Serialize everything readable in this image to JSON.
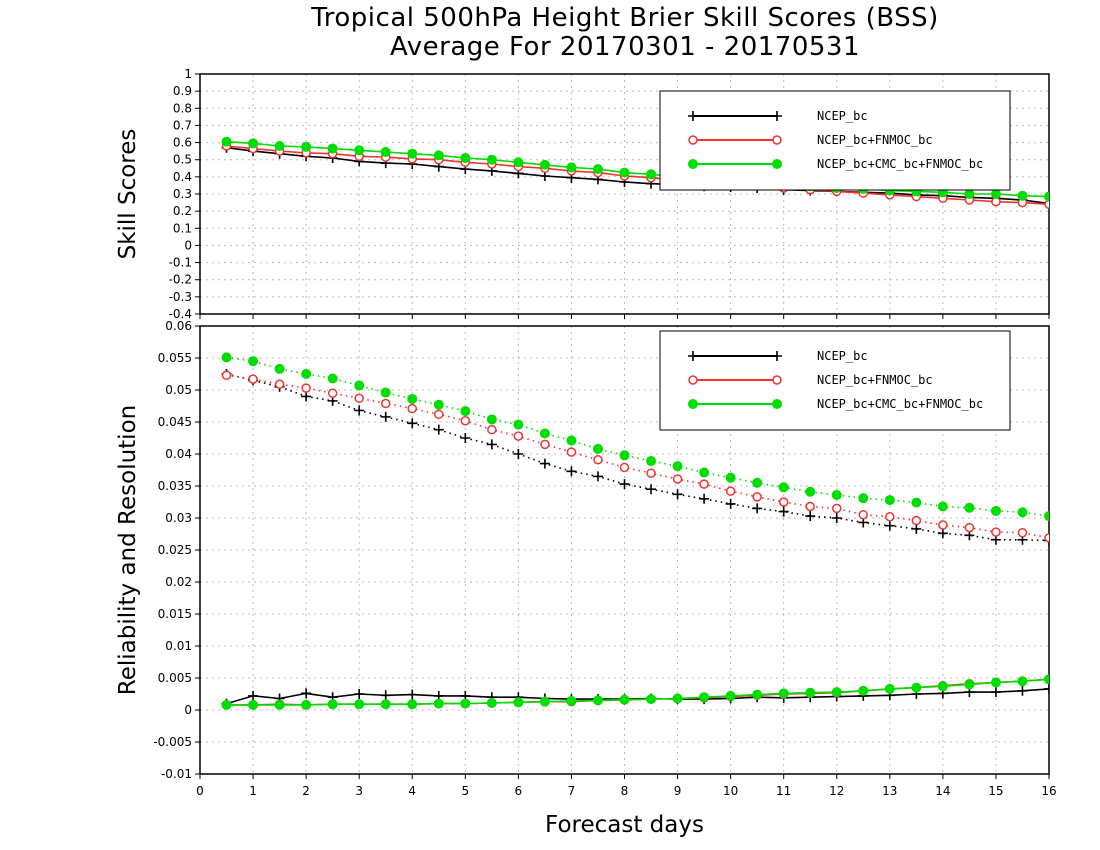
{
  "title_line1": "Tropical 500hPa Height Brier Skill Scores (BSS)",
  "title_line2": "Average For 20170301 - 20170531",
  "colors": {
    "NCEP_bc": "#000000",
    "NCEP_bc+FNMOC_bc": "#ee3333",
    "NCEP_bc+CMC_bc+FNMOC_bc": "#00dd00"
  },
  "chart_data": [
    {
      "type": "line",
      "ylabel": "Skill Scores",
      "xlim": [
        0,
        16
      ],
      "ylim": [
        -0.4,
        1
      ],
      "yticks": [
        -0.4,
        -0.3,
        -0.2,
        -0.1,
        0,
        0.1,
        0.2,
        0.3,
        0.4,
        0.5,
        0.6,
        0.7,
        0.8,
        0.9,
        1
      ],
      "ytick_labels": [
        "-0.4",
        "-0.3",
        "-0.2",
        "-0.1",
        "0",
        "0.1",
        "0.2",
        "0.3",
        "0.4",
        "0.5",
        "0.6",
        "0.7",
        "0.8",
        "0.9",
        "1"
      ],
      "grid": true,
      "legend_position": "top-right",
      "x": [
        0.5,
        1,
        1.5,
        2,
        2.5,
        3,
        3.5,
        4,
        4.5,
        5,
        5.5,
        6,
        6.5,
        7,
        7.5,
        8,
        8.5,
        9,
        9.5,
        10,
        10.5,
        11,
        11.5,
        12,
        12.5,
        13,
        13.5,
        14,
        14.5,
        15,
        15.5,
        16
      ],
      "series": [
        {
          "name": "NCEP_bc",
          "marker": "plus",
          "line": "solid",
          "values": [
            0.57,
            0.55,
            0.535,
            0.52,
            0.51,
            0.49,
            0.48,
            0.475,
            0.46,
            0.445,
            0.435,
            0.42,
            0.405,
            0.395,
            0.385,
            0.37,
            0.36,
            0.355,
            0.345,
            0.34,
            0.335,
            0.325,
            0.32,
            0.315,
            0.31,
            0.305,
            0.295,
            0.29,
            0.28,
            0.275,
            0.265,
            0.245
          ]
        },
        {
          "name": "NCEP_bc+FNMOC_bc",
          "marker": "circle-open",
          "line": "solid",
          "values": [
            0.58,
            0.565,
            0.55,
            0.54,
            0.535,
            0.52,
            0.515,
            0.505,
            0.5,
            0.485,
            0.475,
            0.46,
            0.45,
            0.435,
            0.425,
            0.405,
            0.395,
            0.38,
            0.37,
            0.36,
            0.345,
            0.335,
            0.325,
            0.315,
            0.305,
            0.295,
            0.285,
            0.275,
            0.265,
            0.255,
            0.25,
            0.24
          ]
        },
        {
          "name": "NCEP_bc+CMC_bc+FNMOC_bc",
          "marker": "circle-filled",
          "line": "solid",
          "values": [
            0.605,
            0.595,
            0.58,
            0.575,
            0.565,
            0.555,
            0.545,
            0.535,
            0.525,
            0.51,
            0.5,
            0.485,
            0.47,
            0.455,
            0.445,
            0.425,
            0.415,
            0.4,
            0.39,
            0.375,
            0.365,
            0.355,
            0.345,
            0.335,
            0.33,
            0.32,
            0.315,
            0.31,
            0.3,
            0.3,
            0.29,
            0.285
          ]
        }
      ]
    },
    {
      "type": "line",
      "ylabel": "Reliability and Resolution",
      "xlabel": "Forecast days",
      "xlim": [
        0,
        16
      ],
      "ylim": [
        -0.01,
        0.06
      ],
      "xticks": [
        0,
        1,
        2,
        3,
        4,
        5,
        6,
        7,
        8,
        9,
        10,
        11,
        12,
        13,
        14,
        15,
        16
      ],
      "yticks": [
        -0.01,
        -0.005,
        0,
        0.005,
        0.01,
        0.015,
        0.02,
        0.025,
        0.03,
        0.035,
        0.04,
        0.045,
        0.05,
        0.055,
        0.06
      ],
      "ytick_labels": [
        "-0.01",
        "-0.005",
        "0",
        "0.005",
        "0.01",
        "0.015",
        "0.02",
        "0.025",
        "0.03",
        "0.035",
        "0.04",
        "0.045",
        "0.05",
        "0.055",
        "0.06"
      ],
      "grid": true,
      "legend_position": "top-right",
      "x": [
        0.5,
        1,
        1.5,
        2,
        2.5,
        3,
        3.5,
        4,
        4.5,
        5,
        5.5,
        6,
        6.5,
        7,
        7.5,
        8,
        8.5,
        9,
        9.5,
        10,
        10.5,
        11,
        11.5,
        12,
        12.5,
        13,
        13.5,
        14,
        14.5,
        15,
        15.5,
        16
      ],
      "series": [
        {
          "name": "NCEP_bc",
          "marker": "plus",
          "line": "dotted",
          "role": "resolution",
          "values": [
            0.0525,
            0.0515,
            0.0505,
            0.049,
            0.0483,
            0.0468,
            0.0458,
            0.0448,
            0.0438,
            0.0425,
            0.0415,
            0.04,
            0.0385,
            0.0373,
            0.0365,
            0.0353,
            0.0345,
            0.0337,
            0.033,
            0.0322,
            0.0315,
            0.031,
            0.0303,
            0.03,
            0.0293,
            0.0288,
            0.0283,
            0.0276,
            0.0273,
            0.0266,
            0.0266,
            0.0265
          ]
        },
        {
          "name": "NCEP_bc+FNMOC_bc",
          "marker": "circle-open",
          "line": "dotted",
          "role": "resolution",
          "values": [
            0.0523,
            0.0517,
            0.0509,
            0.0503,
            0.0495,
            0.0487,
            0.0479,
            0.0471,
            0.0462,
            0.0452,
            0.0438,
            0.0428,
            0.0415,
            0.0403,
            0.0391,
            0.0379,
            0.037,
            0.0361,
            0.0353,
            0.0342,
            0.0333,
            0.0325,
            0.0318,
            0.0315,
            0.0305,
            0.0302,
            0.0296,
            0.0289,
            0.0285,
            0.0278,
            0.0277,
            0.0269
          ]
        },
        {
          "name": "NCEP_bc+CMC_bc+FNMOC_bc",
          "marker": "circle-filled",
          "line": "dotted",
          "role": "resolution",
          "values": [
            0.0551,
            0.0545,
            0.0533,
            0.0525,
            0.0518,
            0.0507,
            0.0496,
            0.0486,
            0.0477,
            0.0467,
            0.0454,
            0.0446,
            0.0432,
            0.0421,
            0.0408,
            0.0398,
            0.0389,
            0.0381,
            0.0371,
            0.0363,
            0.0355,
            0.0348,
            0.0341,
            0.0336,
            0.0331,
            0.0328,
            0.0324,
            0.0318,
            0.0316,
            0.0311,
            0.0309,
            0.0303
          ]
        },
        {
          "name": "NCEP_bc",
          "marker": "plus",
          "line": "solid",
          "role": "reliability",
          "values": [
            0.001,
            0.0022,
            0.0018,
            0.0026,
            0.002,
            0.0025,
            0.0023,
            0.0024,
            0.0022,
            0.0022,
            0.002,
            0.002,
            0.0018,
            0.0017,
            0.0017,
            0.0017,
            0.0018,
            0.0017,
            0.0017,
            0.0018,
            0.002,
            0.0019,
            0.002,
            0.0021,
            0.0022,
            0.0023,
            0.0025,
            0.0026,
            0.0028,
            0.0028,
            0.003,
            0.0033
          ]
        },
        {
          "name": "NCEP_bc+FNMOC_bc",
          "marker": "circle-open",
          "line": "solid",
          "role": "reliability",
          "values": [
            0.0008,
            0.0008,
            0.0009,
            0.0008,
            0.0009,
            0.0009,
            0.0009,
            0.0009,
            0.001,
            0.001,
            0.0011,
            0.0012,
            0.0013,
            0.0013,
            0.0015,
            0.0016,
            0.0017,
            0.0018,
            0.0019,
            0.0021,
            0.0023,
            0.0025,
            0.0026,
            0.0027,
            0.003,
            0.0033,
            0.0035,
            0.0038,
            0.0041,
            0.0043,
            0.0045,
            0.0048
          ]
        },
        {
          "name": "NCEP_bc+CMC_bc+FNMOC_bc",
          "marker": "circle-filled",
          "line": "solid",
          "role": "reliability",
          "values": [
            0.0008,
            0.0008,
            0.0008,
            0.0008,
            0.0009,
            0.0009,
            0.0009,
            0.0009,
            0.001,
            0.001,
            0.0011,
            0.0012,
            0.0013,
            0.0014,
            0.0015,
            0.0016,
            0.0017,
            0.0018,
            0.002,
            0.0022,
            0.0024,
            0.0026,
            0.0027,
            0.0028,
            0.003,
            0.0033,
            0.0035,
            0.0037,
            0.004,
            0.0043,
            0.0045,
            0.0048
          ]
        }
      ]
    }
  ]
}
